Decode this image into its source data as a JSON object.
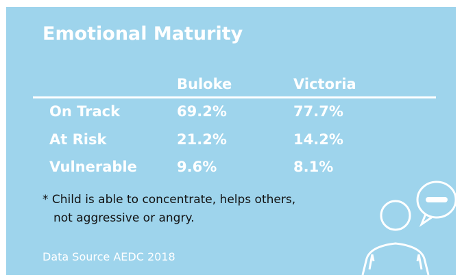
{
  "title": "Emotional Maturity",
  "table": {
    "columns": [
      "Buloke",
      "Victoria"
    ],
    "rows": [
      {
        "label": "On Track",
        "values": [
          "69.2%",
          "77.7%"
        ]
      },
      {
        "label": "At Risk",
        "values": [
          "21.2%",
          "14.2%"
        ]
      },
      {
        "label": "Vulnerable",
        "values": [
          "9.6%",
          "8.1%"
        ]
      }
    ]
  },
  "footnote": [
    "* Child is able to concentrate, helps others,",
    "not aggressive or angry."
  ],
  "source": "Data Source AEDC 2018"
}
